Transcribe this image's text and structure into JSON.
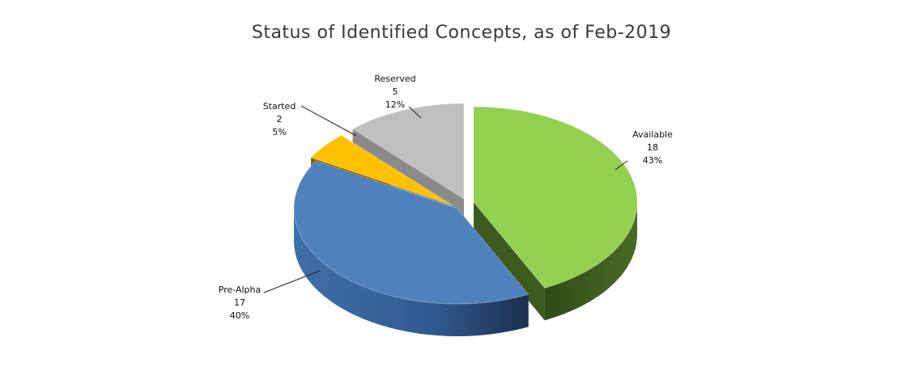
{
  "chart_data": {
    "type": "pie",
    "title": "Status of Identified Concepts, as of Feb-2019",
    "slices": [
      {
        "label": "Available",
        "value": 18,
        "percent": "43%",
        "color": "#92d050",
        "side": "#3d5a1f"
      },
      {
        "label": "Pre-Alpha",
        "value": 17,
        "percent": "40%",
        "color": "#4f81bd",
        "side": "#2c4a74"
      },
      {
        "label": "Started",
        "value": 2,
        "percent": "5%",
        "color": "#ffc000",
        "side": "#7f6000"
      },
      {
        "label": "Reserved",
        "value": 5,
        "percent": "12%",
        "color": "#bfbfbf",
        "side": "#8a8a8a"
      }
    ]
  }
}
